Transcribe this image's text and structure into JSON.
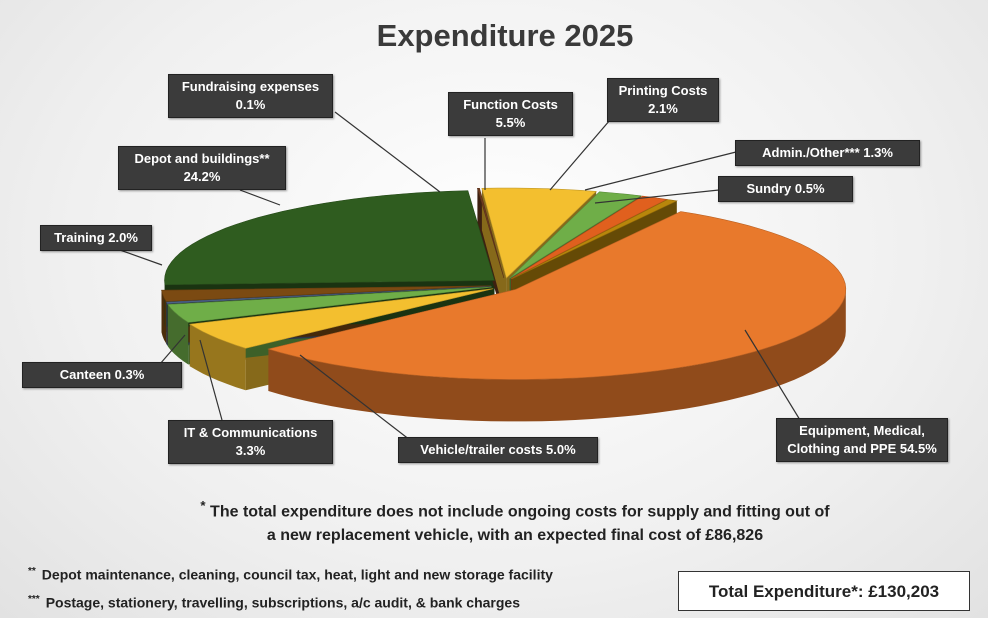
{
  "chart_data": {
    "type": "pie3d",
    "title": "Expenditure 2025",
    "categories": [
      "Equipment, Medical, Clothing and PPE",
      "Vehicle/trailer costs",
      "IT & Communications",
      "Canteen",
      "Training",
      "Depot and buildings**",
      "Fundraising expenses",
      "Function Costs",
      "Printing Costs",
      "Admin./Other***",
      "Sundry"
    ],
    "values": [
      54.5,
      5.0,
      3.3,
      0.3,
      2.0,
      24.2,
      0.1,
      5.5,
      2.1,
      1.3,
      0.5
    ],
    "value_labels": [
      "54.5%",
      "5.0%",
      "3.3%",
      "0.3%",
      "2.0%",
      "24.2%",
      "0.1%",
      "5.5%",
      "2.1%",
      "1.3%",
      "0.5%"
    ],
    "colors": [
      "#e8792c",
      "#f3bf2f",
      "#6fae48",
      "#4c6186",
      "#7b4a12",
      "#2f5c1f",
      "#6e3b1f",
      "#f3bf2f",
      "#6fae48",
      "#e0601e",
      "#b8860b"
    ],
    "exploded": true
  },
  "note": {
    "marker": "*",
    "lines": [
      "The total expenditure does not include ongoing costs for supply and fitting out of",
      "a new replacement vehicle, with an expected final cost of £86,826"
    ]
  },
  "footnotes": [
    {
      "marker": "**",
      "text": "Depot maintenance, cleaning, council tax, heat, light and new storage facility"
    },
    {
      "marker": "***",
      "text": "Postage, stationery, travelling, subscriptions,  a/c audit, & bank charges"
    }
  ],
  "total": "Total Expenditure*: £130,203"
}
